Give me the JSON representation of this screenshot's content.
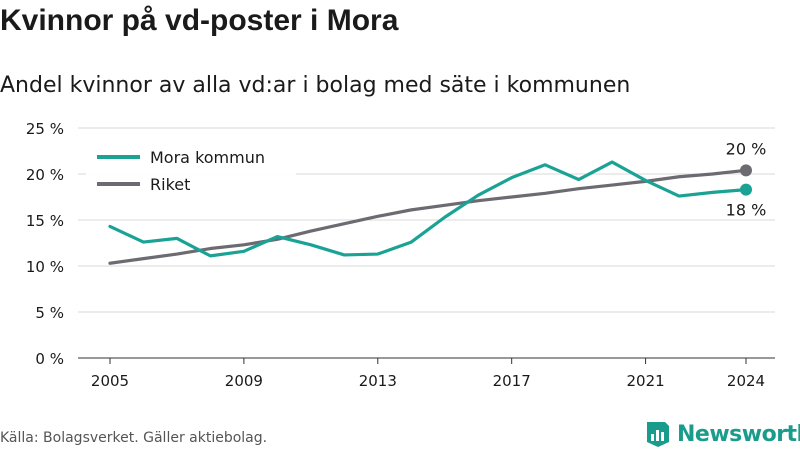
{
  "title": "Kvinnor på vd-poster i Mora",
  "subtitle": "Andel kvinnor av alla vd:ar i bolag med säte i kommunen",
  "source": "Källa: Bolagsverket. Gäller aktiebolag.",
  "brand": {
    "name": "Newsworthy",
    "color": "#1a9c8c"
  },
  "chart_data": {
    "type": "line",
    "title": "",
    "xlabel": "",
    "ylabel": "",
    "x": [
      2005,
      2006,
      2007,
      2008,
      2009,
      2010,
      2011,
      2012,
      2013,
      2014,
      2015,
      2016,
      2017,
      2018,
      2019,
      2020,
      2021,
      2022,
      2023,
      2024
    ],
    "x_ticks": [
      2005,
      2009,
      2013,
      2017,
      2021,
      2024
    ],
    "ylim": [
      0,
      25
    ],
    "y_ticks": [
      0,
      5,
      10,
      15,
      20,
      25
    ],
    "y_tick_labels": [
      "0 %",
      "5 %",
      "10 %",
      "15 %",
      "20 %",
      "25 %"
    ],
    "grid": "horizontal",
    "legend_position": "top-left",
    "series": [
      {
        "name": "Mora kommun",
        "color": "#1aa395",
        "values": [
          14.3,
          12.6,
          13.0,
          11.1,
          11.6,
          13.2,
          12.3,
          11.2,
          11.3,
          12.6,
          15.3,
          17.7,
          19.6,
          21.0,
          19.4,
          21.3,
          19.3,
          17.6,
          18.0,
          18.3
        ],
        "end_label": "18 %"
      },
      {
        "name": "Riket",
        "color": "#6d6b72",
        "values": [
          10.3,
          10.8,
          11.3,
          11.9,
          12.3,
          12.9,
          13.8,
          14.6,
          15.4,
          16.1,
          16.6,
          17.1,
          17.5,
          17.9,
          18.4,
          18.8,
          19.2,
          19.7,
          20.0,
          20.4
        ],
        "end_label": "20 %"
      }
    ]
  }
}
